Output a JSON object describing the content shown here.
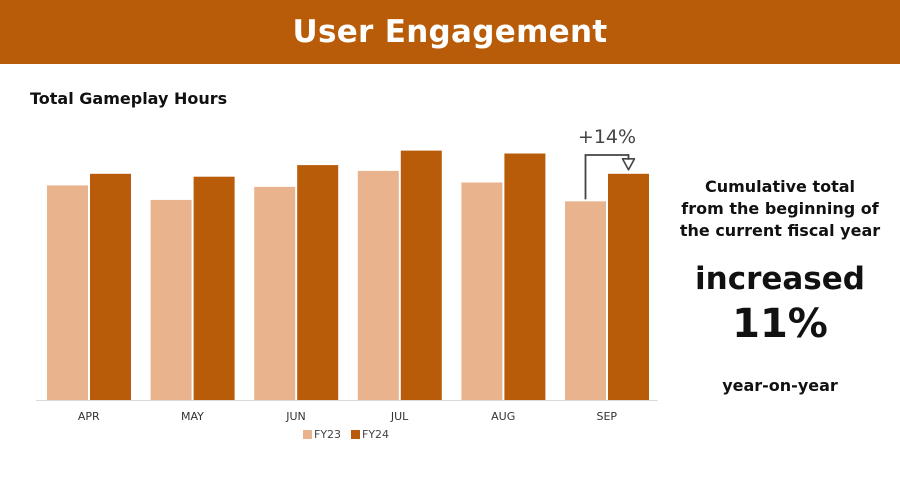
{
  "header": {
    "title": "User Engagement"
  },
  "side_panel": {
    "caption_lines": [
      "Cumulative total",
      "from the beginning of",
      "the current fiscal year"
    ],
    "kicker": "increased",
    "headline_value": "11%",
    "footer": "year-on-year"
  },
  "colors": {
    "header_bg": "#b85c0a",
    "fy23": "#e9b48d",
    "fy24": "#b85c0a",
    "annotation": "#444444"
  },
  "chart_data": {
    "type": "bar",
    "title": "Total Gameplay Hours",
    "categories": [
      "APR",
      "MAY",
      "JUN",
      "JUL",
      "AUG",
      "SEP"
    ],
    "series": [
      {
        "name": "FY23",
        "values": [
          74,
          69,
          73.5,
          79,
          75,
          68.5
        ]
      },
      {
        "name": "FY24",
        "values": [
          78,
          77,
          81,
          86,
          85,
          78
        ]
      }
    ],
    "ylim": [
      0,
      100
    ],
    "grid": false,
    "legend": "bottom-center",
    "annotation": {
      "text": "+14%",
      "category": "SEP",
      "from": "FY23",
      "to": "FY24"
    }
  }
}
